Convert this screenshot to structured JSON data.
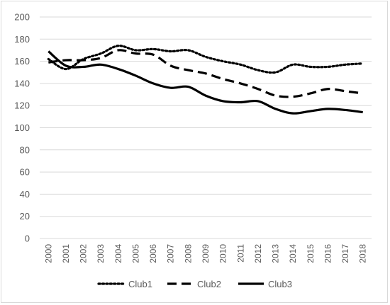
{
  "chart_data": {
    "type": "line",
    "title": "",
    "xlabel": "",
    "ylabel": "",
    "categories": [
      "2000",
      "2001",
      "2002",
      "2003",
      "2004",
      "2005",
      "2006",
      "2007",
      "2008",
      "2009",
      "2010",
      "2011",
      "2012",
      "2013",
      "2014",
      "2015",
      "2016",
      "2017",
      "2018"
    ],
    "ylim": [
      0,
      200
    ],
    "yticks": [
      0,
      20,
      40,
      60,
      80,
      100,
      120,
      140,
      160,
      180,
      200
    ],
    "grid": true,
    "legend_position": "bottom",
    "series": [
      {
        "name": "Club1",
        "style": "dotted",
        "color": "#000000",
        "values": [
          162,
          153,
          162,
          167,
          174,
          170,
          171,
          169,
          170,
          164,
          160,
          157,
          152,
          150,
          157,
          155,
          155,
          157,
          158
        ]
      },
      {
        "name": "Club2",
        "style": "dashed",
        "color": "#000000",
        "values": [
          159,
          161,
          161,
          163,
          170,
          167,
          166,
          156,
          152,
          149,
          144,
          140,
          135,
          129,
          128,
          131,
          135,
          133,
          131
        ]
      },
      {
        "name": "Club3",
        "style": "solid",
        "color": "#000000",
        "values": [
          169,
          156,
          155,
          157,
          153,
          147,
          140,
          136,
          137,
          129,
          124,
          123,
          124,
          117,
          113,
          115,
          117,
          116,
          114
        ]
      }
    ]
  },
  "colors": {
    "gridline": "#d9d9d9",
    "text": "#595959",
    "series": "#000000"
  }
}
